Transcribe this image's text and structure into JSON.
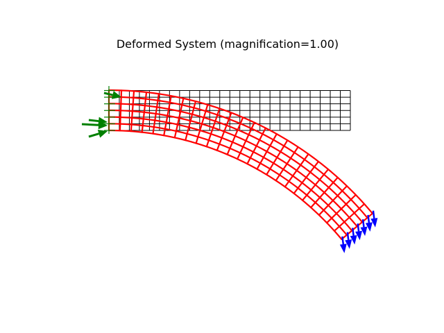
{
  "figure": {
    "title": "Deformed System (magnification=1.00)",
    "colors": {
      "undeformed_mesh": "#000000",
      "deformed_mesh": "#ff0000",
      "support_markers": "#008000",
      "reaction_arrows": "#008000",
      "load_arrows": "#0000ff"
    },
    "mesh": {
      "elements_along_length": 24,
      "elements_through_depth": 6
    },
    "annotations": {
      "support_side": "left",
      "load_side": "right-end",
      "load_direction": "downward",
      "reaction_arrow_count": 4,
      "load_arrow_count": 7
    }
  }
}
